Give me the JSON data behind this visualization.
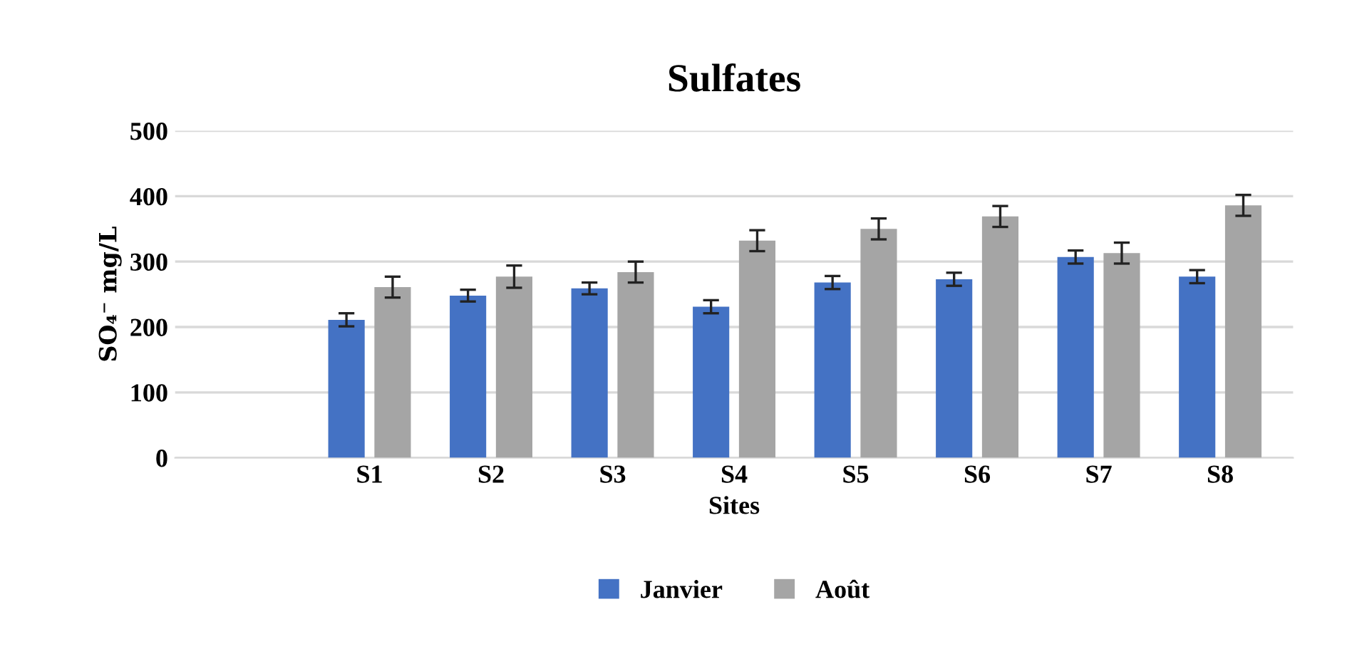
{
  "chart_data": {
    "type": "bar",
    "title": "Sulfates",
    "xlabel": "Sites",
    "ylabel": "SO₄⁻ mg/L",
    "categories": [
      null,
      "S1",
      "S2",
      "S3",
      "S4",
      "S5",
      "S6",
      "S7",
      "S8"
    ],
    "series": [
      {
        "name": "Janvier",
        "color": "#4472c4",
        "values": [
          null,
          211,
          248,
          259,
          231,
          268,
          273,
          307,
          277
        ],
        "errors": [
          null,
          10,
          9,
          9,
          10,
          10,
          10,
          10,
          10
        ]
      },
      {
        "name": "Août",
        "color": "#a5a5a5",
        "values": [
          null,
          261,
          277,
          284,
          332,
          350,
          369,
          313,
          386
        ],
        "errors": [
          null,
          16,
          17,
          16,
          16,
          16,
          16,
          16,
          16
        ]
      }
    ],
    "ylim": [
      0,
      500
    ],
    "yticks": [
      0,
      100,
      200,
      300,
      400,
      500
    ],
    "grid": "y",
    "legend": "bottom"
  }
}
